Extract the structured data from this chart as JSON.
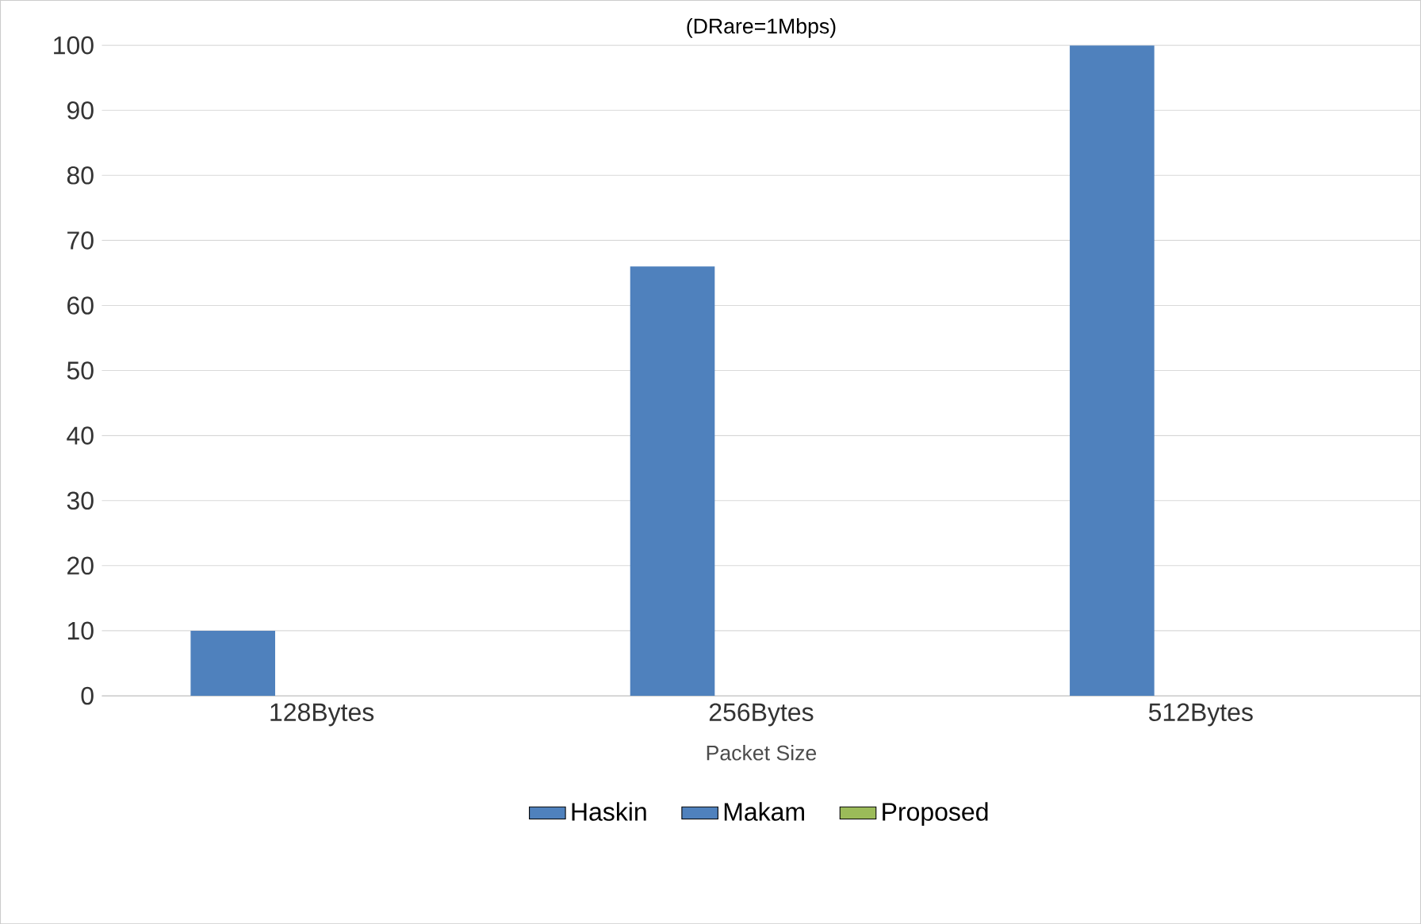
{
  "chart_data": {
    "type": "bar",
    "title": "(DRare=1Mbps)",
    "xlabel": "Packet Size",
    "categories": [
      "128Bytes",
      "256Bytes",
      "512Bytes"
    ],
    "series": [
      {
        "name": "Haskin",
        "color": "#4f81bd",
        "values": [
          10,
          66,
          100
        ]
      },
      {
        "name": "Makam",
        "color": "#4f81bd",
        "values": [
          0,
          0,
          0
        ]
      },
      {
        "name": "Proposed",
        "color": "#9bbb59",
        "values": [
          0,
          0,
          0
        ]
      }
    ],
    "ylim": [
      0,
      100
    ],
    "yticks": [
      0,
      10,
      20,
      30,
      40,
      50,
      60,
      70,
      80,
      90,
      100
    ],
    "grid": "y",
    "legend": "bottom"
  }
}
